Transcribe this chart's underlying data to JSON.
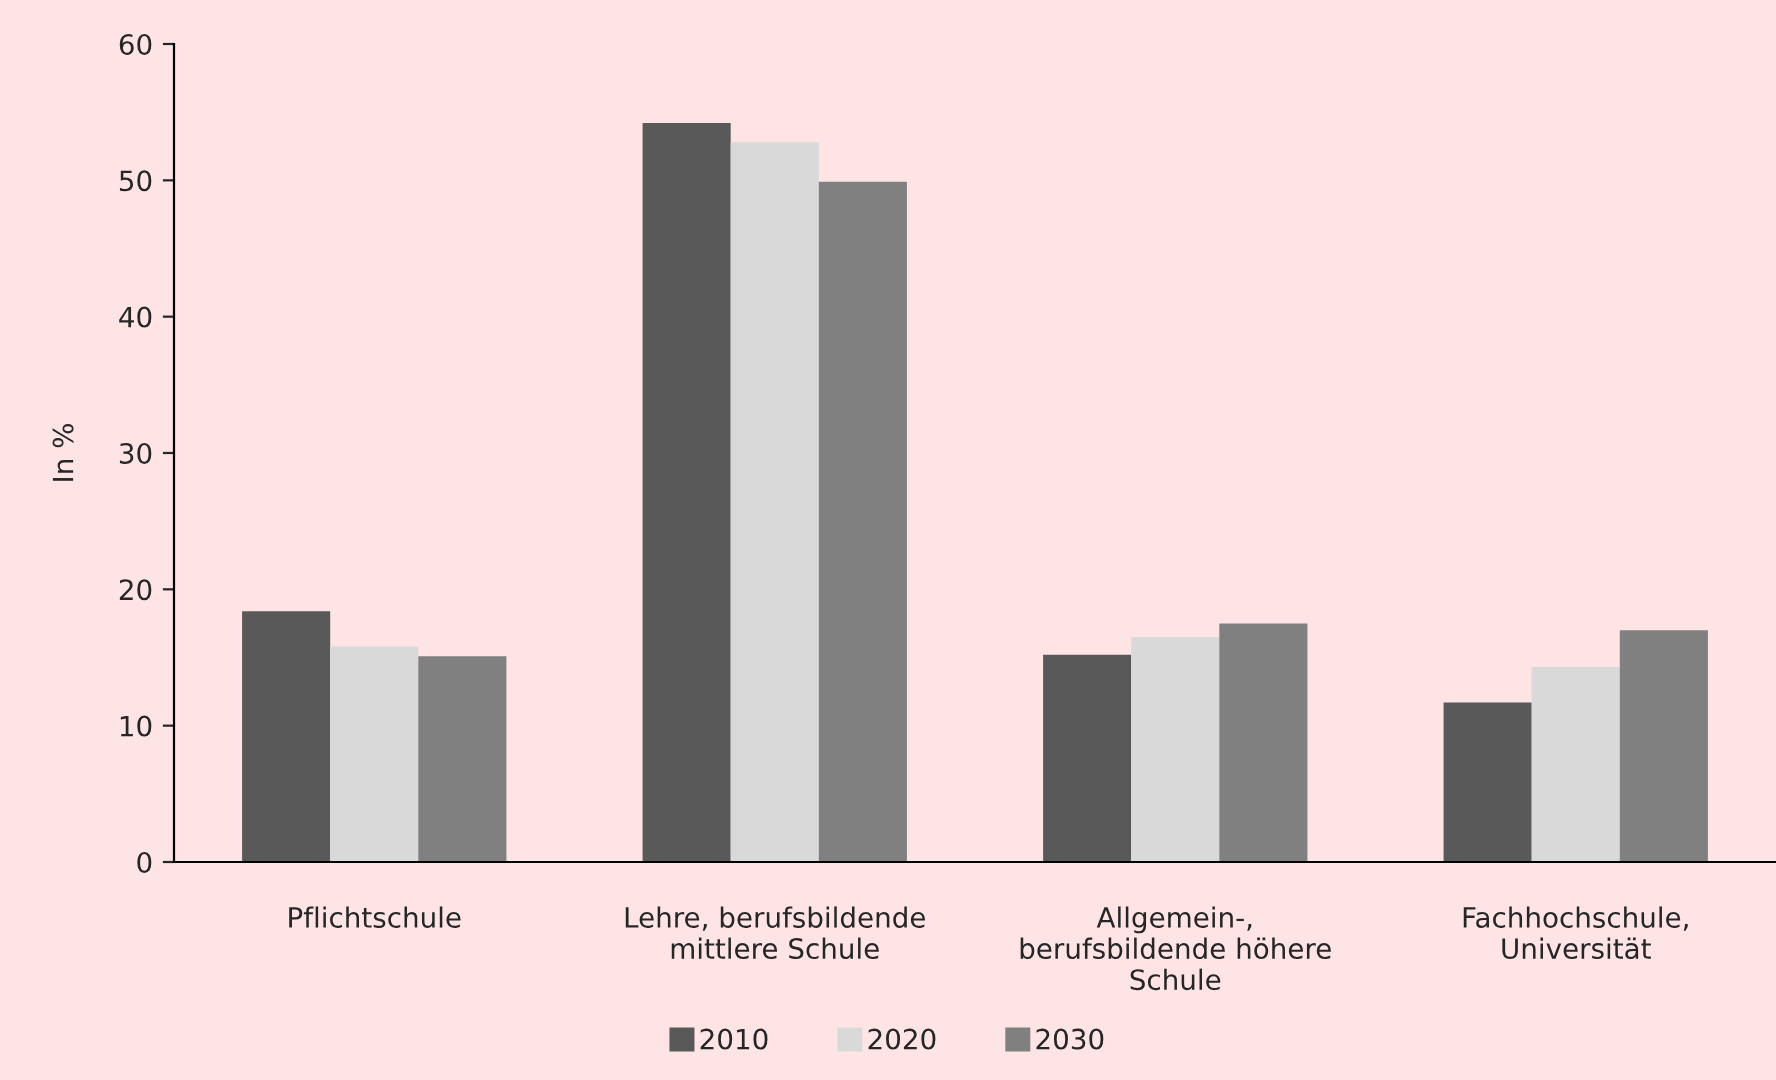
{
  "chart_data": {
    "type": "bar",
    "ylabel": "In %",
    "categories": [
      "Pflichtschule",
      "Lehre, berufsbildende\nmittlere Schule",
      "Allgemein-,\nberufsbildende höhere\nSchule",
      "Fachhochschule,\nUniversität"
    ],
    "series": [
      {
        "name": "2010",
        "color": "#595959",
        "values": [
          18.4,
          54.2,
          15.2,
          11.7
        ]
      },
      {
        "name": "2020",
        "color": "#d9d9d9",
        "values": [
          15.8,
          52.8,
          16.5,
          14.3
        ]
      },
      {
        "name": "2030",
        "color": "#808080",
        "values": [
          15.1,
          49.9,
          17.5,
          17.0
        ]
      }
    ],
    "ylim": [
      0,
      60
    ],
    "yticks": [
      0,
      10,
      20,
      30,
      40,
      50,
      60
    ],
    "grid": false,
    "legend": "bottom"
  }
}
